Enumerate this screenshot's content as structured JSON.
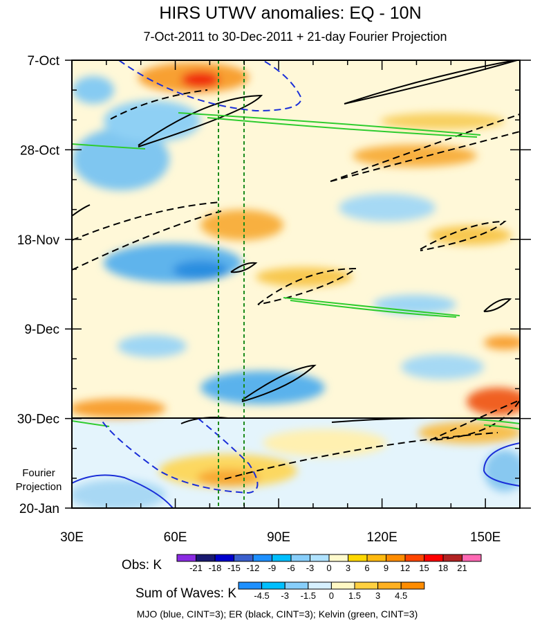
{
  "chart_data": {
    "type": "heatmap",
    "title": "HIRS UTWV anomalies: EQ - 10N",
    "subtitle": "7-Oct-2011 to 30-Dec-2011 + 21-day Fourier Projection",
    "x_axis": {
      "label": "",
      "range": [
        30,
        160
      ],
      "ticks": [
        30,
        60,
        90,
        120,
        150
      ],
      "tick_labels": [
        "30E",
        "60E",
        "90E",
        "120E",
        "150E"
      ]
    },
    "y_axis": {
      "label": "",
      "range_days": [
        0,
        105
      ],
      "ticks_days": [
        0,
        21,
        42,
        63,
        84,
        105
      ],
      "tick_labels": [
        "7-Oct",
        "28-Oct",
        "18-Nov",
        "9-Dec",
        "30-Dec",
        "20-Jan"
      ]
    },
    "observation_end_day": 84,
    "reference_lines_lon": [
      73,
      80
    ],
    "projection_label": "Fourier Projection",
    "legend_obs": {
      "label": "Obs: K",
      "levels": [
        "-21",
        "-18",
        "-15",
        "-12",
        "-9",
        "-6",
        "-3",
        "0",
        "3",
        "6",
        "9",
        "12",
        "15",
        "18",
        "21"
      ],
      "colors": [
        "#8a2be2",
        "#191970",
        "#0000cd",
        "#3a5fcd",
        "#1e90ff",
        "#00bfff",
        "#87cefa",
        "#b0e2ff",
        "#fffacd",
        "#ffd700",
        "#ffb90f",
        "#ff8c00",
        "#ff4500",
        "#ff0000",
        "#b22222",
        "#ff69b4"
      ]
    },
    "legend_waves": {
      "label": "Sum of Waves: K",
      "levels": [
        "-4.5",
        "-3",
        "-1.5",
        "0",
        "1.5",
        "3",
        "4.5"
      ],
      "colors": [
        "#1e90ff",
        "#00bfff",
        "#87cefa",
        "#d6f0ff",
        "#fff8c4",
        "#ffd040",
        "#ffb020",
        "#ff8c00"
      ]
    },
    "contour_caption": "MJO (blue, CINT=3); ER (black, CINT=3); Kelvin (green, CINT=3)",
    "contour_colors": {
      "mjo": "#1a2ed8",
      "er": "#000000",
      "kelvin": "#2ecc2e"
    }
  }
}
